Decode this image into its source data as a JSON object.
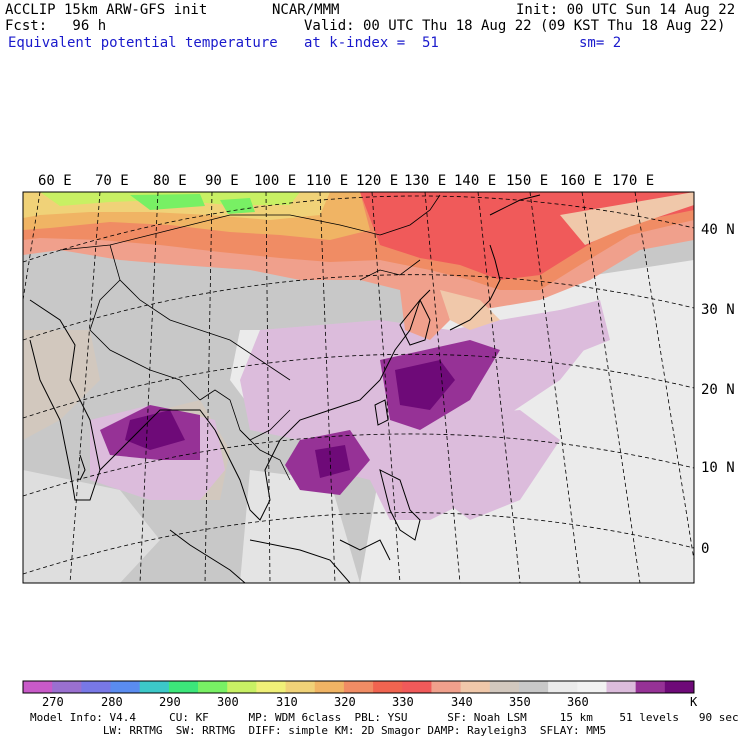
{
  "header": {
    "model": "ACCLIP 15km ARW-GFS init",
    "org": "NCAR/MMM",
    "init": "Init: 00 UTC Sun 14 Aug 22",
    "fcst": "Fcst:   96 h",
    "valid": "Valid: 00 UTC Thu 18 Aug 22 (09 KST Thu 18 Aug 22)",
    "field": "Equivalent potential temperature",
    "level": "at k-index =  51",
    "smooth": "sm= 2"
  },
  "map": {
    "lon_labels": [
      "60 E",
      "70 E",
      "80 E",
      "90 E",
      "100 E",
      "110 E",
      "120 E",
      "130 E",
      "140 E",
      "150 E",
      "160 E",
      "170 E"
    ],
    "lat_labels": [
      "40 N",
      "30 N",
      "20 N",
      "10 N",
      "0"
    ]
  },
  "colorbar": {
    "unit": "K",
    "ticks": [
      "270",
      "280",
      "290",
      "300",
      "310",
      "320",
      "330",
      "340",
      "350",
      "360"
    ],
    "colors": [
      "#c85ac8",
      "#9a70d0",
      "#7878e6",
      "#5a8cf0",
      "#3cc8c8",
      "#3ce67a",
      "#78f064",
      "#c8f064",
      "#f0f078",
      "#f0d278",
      "#f0b464",
      "#f08c64",
      "#f06450",
      "#f05a5a",
      "#f0a08c",
      "#f0c8aa",
      "#d2c8be",
      "#c8c8c8",
      "#ebebeb",
      "#f2f2f2",
      "#dcbcdc",
      "#963296",
      "#6e0a78"
    ]
  },
  "footer": {
    "line1": "Model Info: V4.4     CU: KF      MP: WDM 6class  PBL: YSU      SF: Noah LSM     15 km    51 levels   90 sec",
    "line2": "           LW: RRTMG  SW: RRTMG  DIFF: simple KM: 2D Smagor DAMP: Rayleigh3  SFLAY: MM5"
  }
}
